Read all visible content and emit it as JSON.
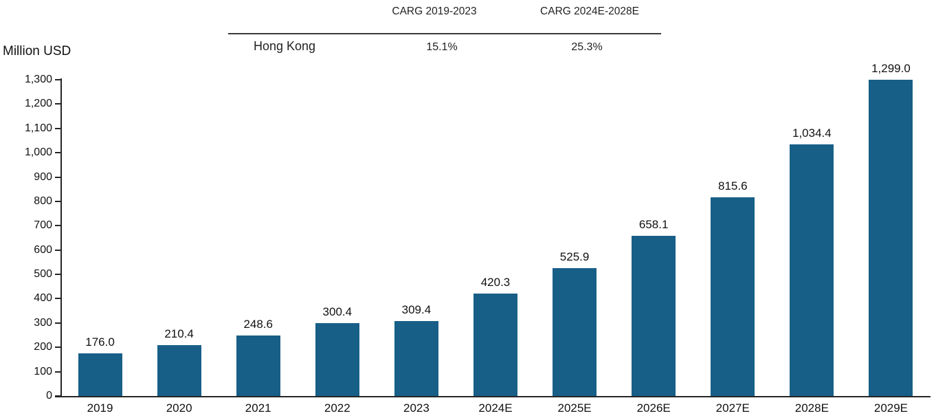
{
  "header_table": {
    "col_headers": [
      "CARG 2019-2023",
      "CARG 2024E-2028E"
    ],
    "rows": [
      {
        "label": "Hong Kong",
        "values": [
          "15.1%",
          "25.3%"
        ]
      }
    ]
  },
  "chart_data": {
    "type": "bar",
    "title": "",
    "unit_label": "Million USD",
    "xlabel": "",
    "ylabel": "Million USD",
    "categories": [
      "2019",
      "2020",
      "2021",
      "2022",
      "2023",
      "2024E",
      "2025E",
      "2026E",
      "2027E",
      "2028E",
      "2029E"
    ],
    "values": [
      176.0,
      210.4,
      248.6,
      300.4,
      309.4,
      420.3,
      525.9,
      658.1,
      815.6,
      1034.4,
      1299.0
    ],
    "value_labels": [
      "176.0",
      "210.4",
      "248.6",
      "300.4",
      "309.4",
      "420.3",
      "525.9",
      "658.1",
      "815.6",
      "1,034.4",
      "1,299.0"
    ],
    "ylim": [
      0,
      1300
    ],
    "ytick_step": 100,
    "ytick_labels": [
      "0",
      "100",
      "200",
      "300",
      "400",
      "500",
      "600",
      "700",
      "800",
      "900",
      "1,000",
      "1,100",
      "1,200",
      "1,300"
    ],
    "bar_color": "#175F87",
    "grid": false,
    "legend_position": "none"
  }
}
